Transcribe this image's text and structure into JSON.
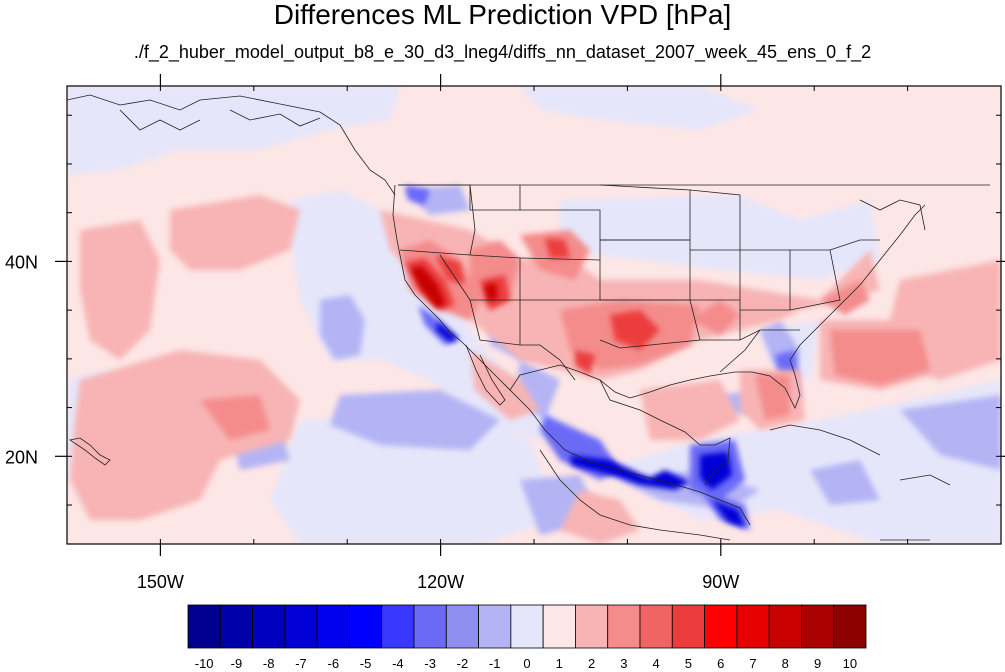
{
  "title": "Differences ML Prediction VPD [hPa]",
  "subtitle": "./f_2_huber_model_output_b8_e_30_d3_lneg4/diffs_nn_dataset_2007_week_45_ens_0_f_2",
  "map": {
    "lon_range": [
      -160,
      -60
    ],
    "lat_range": [
      11,
      58
    ],
    "x_ticks": [
      {
        "lon": -150,
        "label": "150W"
      },
      {
        "lon": -120,
        "label": "120W"
      },
      {
        "lon": -90,
        "label": "90W"
      }
    ],
    "y_ticks": [
      {
        "lat": 40,
        "label": "40N"
      },
      {
        "lat": 20,
        "label": "20N"
      }
    ],
    "background_color": "#FDE6E6"
  },
  "colorbar": {
    "labels": [
      "-10",
      "-9",
      "-8",
      "-7",
      "-6",
      "-5",
      "-4",
      "-3",
      "-2",
      "-1",
      "0",
      "1",
      "2",
      "3",
      "4",
      "5",
      "6",
      "7",
      "8",
      "9",
      "10"
    ],
    "colors": [
      "#00008F",
      "#0000A8",
      "#0000C0",
      "#0000D6",
      "#0000EC",
      "#0000FF",
      "#3838FF",
      "#6A6AF7",
      "#8F8FF2",
      "#B4B4F5",
      "#E6E6FA",
      "#FDE6E6",
      "#F8B4B4",
      "#F48C8C",
      "#F06464",
      "#EC3C3C",
      "#FF0000",
      "#E60000",
      "#C80000",
      "#AA0000",
      "#8C0000"
    ]
  }
}
